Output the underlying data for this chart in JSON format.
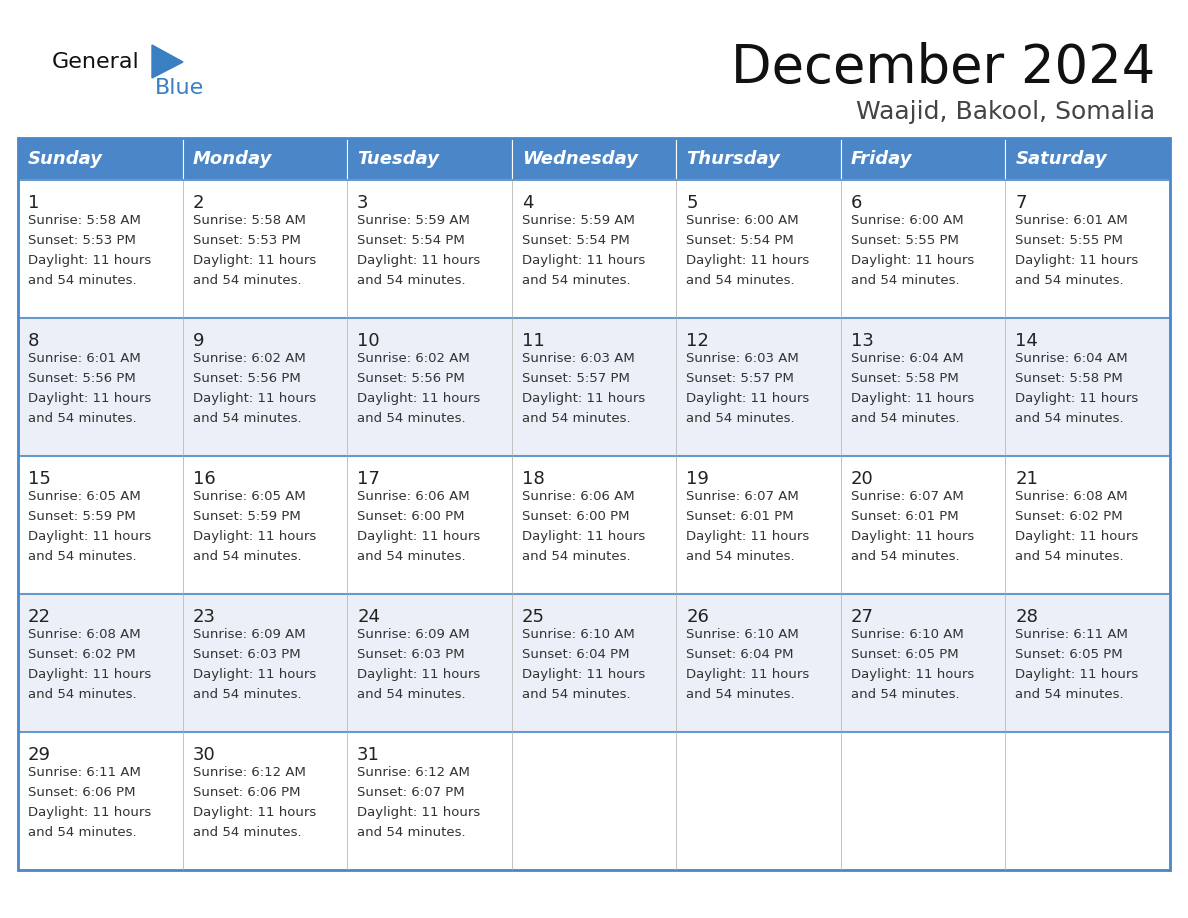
{
  "title": "December 2024",
  "subtitle": "Waajid, Bakool, Somalia",
  "days_of_week": [
    "Sunday",
    "Monday",
    "Tuesday",
    "Wednesday",
    "Thursday",
    "Friday",
    "Saturday"
  ],
  "header_bg": "#4A86C8",
  "header_text_color": "#FFFFFF",
  "cell_bg_row0": "#FFFFFF",
  "cell_bg_row1": "#EBF0F8",
  "cell_bg_row2": "#FFFFFF",
  "cell_bg_row3": "#EBF0F8",
  "cell_bg_row4": "#FFFFFF",
  "day_number_color": "#222222",
  "cell_text_color": "#333333",
  "border_color": "#4A86C8",
  "sep_line_color": "#6699CC",
  "title_color": "#111111",
  "subtitle_color": "#444444",
  "logo_general_color": "#111111",
  "logo_blue_color": "#3A7FC1",
  "calendar_data": [
    [
      {
        "day": 1,
        "sunrise": "5:58 AM",
        "sunset": "5:53 PM"
      },
      {
        "day": 2,
        "sunrise": "5:58 AM",
        "sunset": "5:53 PM"
      },
      {
        "day": 3,
        "sunrise": "5:59 AM",
        "sunset": "5:54 PM"
      },
      {
        "day": 4,
        "sunrise": "5:59 AM",
        "sunset": "5:54 PM"
      },
      {
        "day": 5,
        "sunrise": "6:00 AM",
        "sunset": "5:54 PM"
      },
      {
        "day": 6,
        "sunrise": "6:00 AM",
        "sunset": "5:55 PM"
      },
      {
        "day": 7,
        "sunrise": "6:01 AM",
        "sunset": "5:55 PM"
      }
    ],
    [
      {
        "day": 8,
        "sunrise": "6:01 AM",
        "sunset": "5:56 PM"
      },
      {
        "day": 9,
        "sunrise": "6:02 AM",
        "sunset": "5:56 PM"
      },
      {
        "day": 10,
        "sunrise": "6:02 AM",
        "sunset": "5:56 PM"
      },
      {
        "day": 11,
        "sunrise": "6:03 AM",
        "sunset": "5:57 PM"
      },
      {
        "day": 12,
        "sunrise": "6:03 AM",
        "sunset": "5:57 PM"
      },
      {
        "day": 13,
        "sunrise": "6:04 AM",
        "sunset": "5:58 PM"
      },
      {
        "day": 14,
        "sunrise": "6:04 AM",
        "sunset": "5:58 PM"
      }
    ],
    [
      {
        "day": 15,
        "sunrise": "6:05 AM",
        "sunset": "5:59 PM"
      },
      {
        "day": 16,
        "sunrise": "6:05 AM",
        "sunset": "5:59 PM"
      },
      {
        "day": 17,
        "sunrise": "6:06 AM",
        "sunset": "6:00 PM"
      },
      {
        "day": 18,
        "sunrise": "6:06 AM",
        "sunset": "6:00 PM"
      },
      {
        "day": 19,
        "sunrise": "6:07 AM",
        "sunset": "6:01 PM"
      },
      {
        "day": 20,
        "sunrise": "6:07 AM",
        "sunset": "6:01 PM"
      },
      {
        "day": 21,
        "sunrise": "6:08 AM",
        "sunset": "6:02 PM"
      }
    ],
    [
      {
        "day": 22,
        "sunrise": "6:08 AM",
        "sunset": "6:02 PM"
      },
      {
        "day": 23,
        "sunrise": "6:09 AM",
        "sunset": "6:03 PM"
      },
      {
        "day": 24,
        "sunrise": "6:09 AM",
        "sunset": "6:03 PM"
      },
      {
        "day": 25,
        "sunrise": "6:10 AM",
        "sunset": "6:04 PM"
      },
      {
        "day": 26,
        "sunrise": "6:10 AM",
        "sunset": "6:04 PM"
      },
      {
        "day": 27,
        "sunrise": "6:10 AM",
        "sunset": "6:05 PM"
      },
      {
        "day": 28,
        "sunrise": "6:11 AM",
        "sunset": "6:05 PM"
      }
    ],
    [
      {
        "day": 29,
        "sunrise": "6:11 AM",
        "sunset": "6:06 PM"
      },
      {
        "day": 30,
        "sunrise": "6:12 AM",
        "sunset": "6:06 PM"
      },
      {
        "day": 31,
        "sunrise": "6:12 AM",
        "sunset": "6:07 PM"
      },
      null,
      null,
      null,
      null
    ]
  ],
  "daylight_line1": "Daylight: 11 hours",
  "daylight_line2": "and 54 minutes."
}
